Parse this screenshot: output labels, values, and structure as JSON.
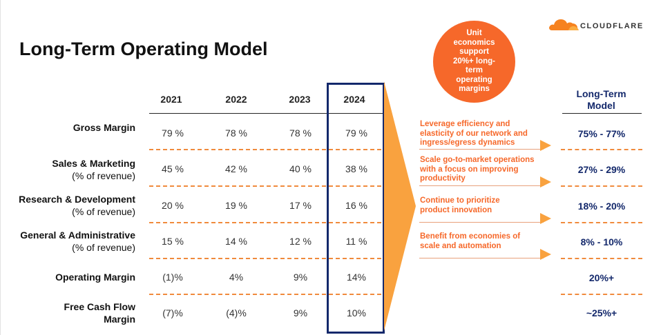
{
  "slide": {
    "title": "Long-Term Operating Model"
  },
  "brand": {
    "name": "CLOUDFLARE",
    "accent": "#f6682a",
    "navy": "#13286b"
  },
  "badge": {
    "text": "Unit economics support 20%+ long-term operating margins"
  },
  "columns": [
    "2021",
    "2022",
    "2023",
    "2024"
  ],
  "rows": [
    {
      "label": "Gross Margin",
      "sublabel": "",
      "values": [
        "79 %",
        "78 %",
        "78 %",
        "79 %"
      ],
      "target": "75% - 77%",
      "driver": "Leverage efficiency and elasticity of our network and ingress/egress dynamics"
    },
    {
      "label": "Sales & Marketing",
      "sublabel": "(% of revenue)",
      "values": [
        "45 %",
        "42 %",
        "40 %",
        "38 %"
      ],
      "target": "27% - 29%",
      "driver": "Scale go-to-market operations with a focus on improving productivity"
    },
    {
      "label": "Research & Development",
      "sublabel": "(% of revenue)",
      "values": [
        "20 %",
        "19 %",
        "17 %",
        "16 %"
      ],
      "target": "18% - 20%",
      "driver": "Continue to prioritize product innovation"
    },
    {
      "label": "General & Administrative",
      "sublabel": "(% of revenue)",
      "values": [
        "15 %",
        "14 %",
        "12 %",
        "11 %"
      ],
      "target": "8% - 10%",
      "driver": "Benefit from economies of scale and automation"
    },
    {
      "label": "Operating Margin",
      "sublabel": "",
      "values": [
        "(1)%",
        "4%",
        "9%",
        "14%"
      ],
      "target": "20%+"
    },
    {
      "label": "Free Cash Flow Margin",
      "sublabel": "",
      "values": [
        "(7)%",
        "(4)%",
        "9%",
        "10%"
      ],
      "target": "~25%+"
    }
  ],
  "long_term": {
    "heading": "Long-Term Model"
  }
}
